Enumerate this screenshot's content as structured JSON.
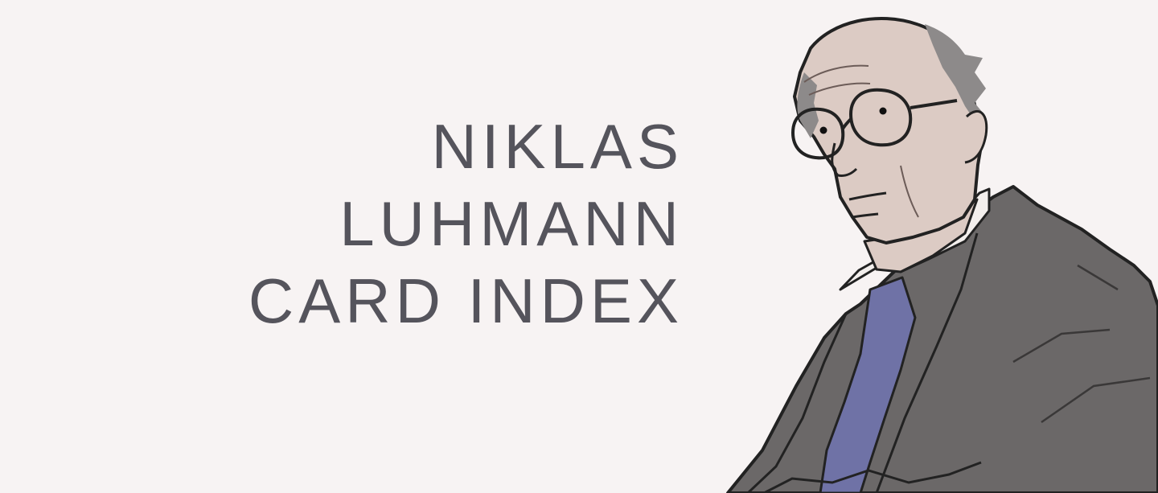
{
  "title": {
    "line1": "NIKLAS",
    "line2": "LUHMANN",
    "line3": "CARD INDEX"
  },
  "illustration": {
    "subject": "portrait-of-man-with-glasses-and-tie"
  },
  "colors": {
    "background": "#f7f3f3",
    "title_text": "#55545c",
    "skin": "#dccbc4",
    "hair": "#8d8a8a",
    "jacket": "#6b6868",
    "shirt": "#f3efed",
    "tie": "#6f72a6",
    "outline": "#222222"
  }
}
